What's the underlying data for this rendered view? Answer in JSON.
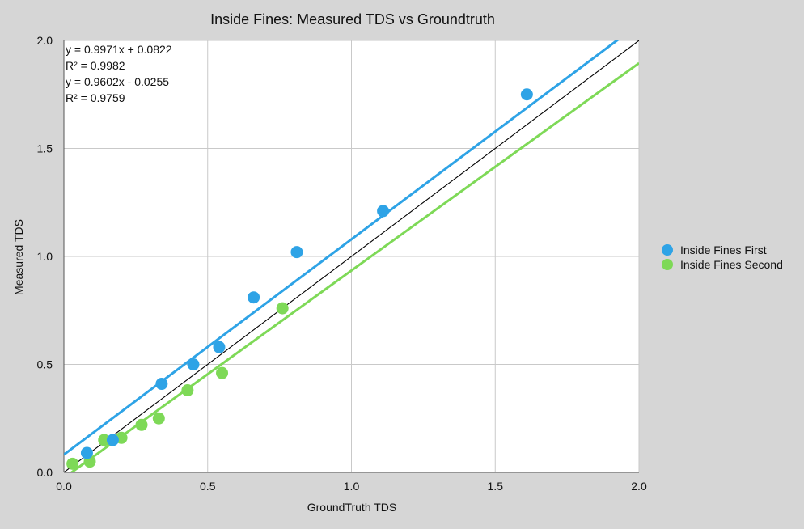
{
  "chart_data": {
    "type": "scatter",
    "title": "Inside Fines: Measured TDS vs Groundtruth",
    "xlabel": "GroundTruth TDS",
    "ylabel": "Measured TDS",
    "xlim": [
      0,
      2
    ],
    "ylim": [
      0,
      2
    ],
    "x_ticks": [
      "0.0",
      "0.5",
      "1.0",
      "1.5",
      "2.0"
    ],
    "y_ticks": [
      "0.0",
      "0.5",
      "1.0",
      "1.5",
      "2.0"
    ],
    "grid": true,
    "legend_position": "right",
    "plot_background": "#ffffff",
    "page_background": "#d6d6d6",
    "identity_line": {
      "color": "#000000",
      "slope": 1,
      "intercept": 0
    },
    "series": [
      {
        "name": "Inside Fines First",
        "color": "#2ea3e6",
        "points": [
          [
            0.08,
            0.09
          ],
          [
            0.17,
            0.15
          ],
          [
            0.34,
            0.41
          ],
          [
            0.45,
            0.5
          ],
          [
            0.54,
            0.58
          ],
          [
            0.66,
            0.81
          ],
          [
            0.81,
            1.02
          ],
          [
            1.11,
            1.21
          ],
          [
            1.61,
            1.75
          ]
        ],
        "trendline": {
          "slope": 0.9971,
          "intercept": 0.0822
        }
      },
      {
        "name": "Inside Fines Second",
        "color": "#7ed957",
        "points": [
          [
            0.03,
            0.04
          ],
          [
            0.09,
            0.05
          ],
          [
            0.14,
            0.15
          ],
          [
            0.2,
            0.16
          ],
          [
            0.27,
            0.22
          ],
          [
            0.33,
            0.25
          ],
          [
            0.43,
            0.38
          ],
          [
            0.55,
            0.46
          ],
          [
            0.76,
            0.76
          ]
        ],
        "trendline": {
          "slope": 0.9602,
          "intercept": -0.0255
        }
      }
    ],
    "annotations": [
      "y = 0.9971x + 0.0822",
      "R² = 0.9982",
      "y = 0.9602x - 0.0255",
      "R² = 0.9759"
    ]
  }
}
